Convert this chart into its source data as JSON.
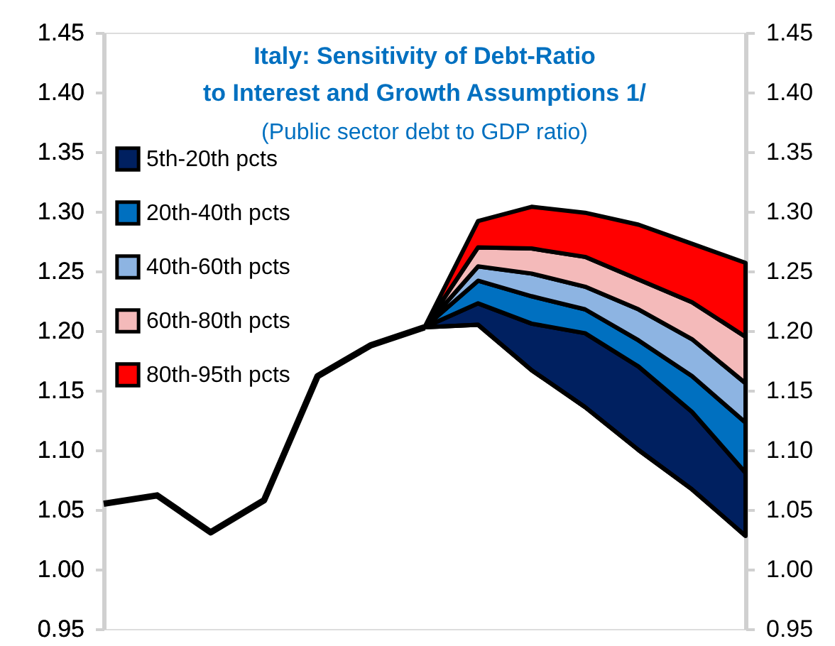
{
  "chart_data": {
    "type": "area",
    "title": "Italy: Sensitivity of Debt-Ratio\nto Interest and Growth Assumptions 1/",
    "subtitle": "(Public sector debt to GDP ratio)",
    "categories": [
      null,
      null,
      null,
      null,
      null,
      null,
      null,
      null,
      null,
      null,
      null,
      null,
      null
    ],
    "series": [
      {
        "type": "line",
        "axis": "y2",
        "color": "#000000",
        "values": [
          1.055,
          1.062,
          1.031,
          1.058,
          1.162,
          1.188,
          1.203,
          null,
          null,
          null,
          null,
          null,
          null
        ]
      },
      {
        "type": "line",
        "color": "#000000",
        "values": [
          null,
          null,
          null,
          null,
          null,
          null,
          1.203,
          1.205,
          1.167,
          1.136,
          1.1,
          1.067,
          1.028
        ]
      },
      {
        "name": "5th-20th pcts",
        "color": "#002060",
        "values": [
          null,
          null,
          null,
          null,
          null,
          null,
          1.203,
          1.223,
          1.206,
          1.198,
          1.17,
          1.132,
          1.081
        ]
      },
      {
        "name": "20th-40th pcts",
        "color": "#0070c0",
        "values": [
          null,
          null,
          null,
          null,
          null,
          null,
          1.203,
          1.242,
          1.229,
          1.218,
          1.192,
          1.162,
          1.123
        ]
      },
      {
        "name": "40th-60th pcts",
        "color": "#8db4e2",
        "values": [
          null,
          null,
          null,
          null,
          null,
          null,
          1.203,
          1.254,
          1.248,
          1.237,
          1.218,
          1.193,
          1.156
        ]
      },
      {
        "name": "60th-80th pcts",
        "color": "#f4baba",
        "values": [
          null,
          null,
          null,
          null,
          null,
          null,
          1.203,
          1.27,
          1.269,
          1.262,
          1.243,
          1.224,
          1.195
        ]
      },
      {
        "name": "80th-95th pcts",
        "color": "#ff0000",
        "values": [
          null,
          null,
          null,
          null,
          null,
          null,
          1.203,
          1.292,
          1.304,
          1.299,
          1.289,
          1.273,
          1.257
        ]
      }
    ],
    "ylim": [
      0.95,
      1.45
    ],
    "yticks": [
      {
        "value": 0.95,
        "label": "0.95"
      },
      {
        "value": 1.0,
        "label": "1.00"
      },
      {
        "value": 1.05,
        "label": "1.05"
      },
      {
        "value": 1.1,
        "label": "1.10"
      },
      {
        "value": 1.15,
        "label": "1.15"
      },
      {
        "value": 1.2,
        "label": "1.20"
      },
      {
        "value": 1.25,
        "label": "1.25"
      },
      {
        "value": 1.3,
        "label": "1.30"
      },
      {
        "value": 1.35,
        "label": "1.35"
      },
      {
        "value": 1.4,
        "label": "1.40"
      },
      {
        "value": 1.45,
        "label": "1.45"
      }
    ],
    "y2lim": [
      0.95,
      1.45
    ],
    "y2ticks": [
      {
        "value": 0.95,
        "label": "0.95"
      },
      {
        "value": 1.0,
        "label": "1.00"
      },
      {
        "value": 1.05,
        "label": "1.05"
      },
      {
        "value": 1.1,
        "label": "1.10"
      },
      {
        "value": 1.15,
        "label": "1.15"
      },
      {
        "value": 1.2,
        "label": "1.20"
      },
      {
        "value": 1.25,
        "label": "1.25"
      },
      {
        "value": 1.3,
        "label": "1.30"
      },
      {
        "value": 1.35,
        "label": "1.35"
      },
      {
        "value": 1.4,
        "label": "1.40"
      },
      {
        "value": 1.45,
        "label": "1.45"
      }
    ],
    "grid": false,
    "legend": "top left"
  }
}
